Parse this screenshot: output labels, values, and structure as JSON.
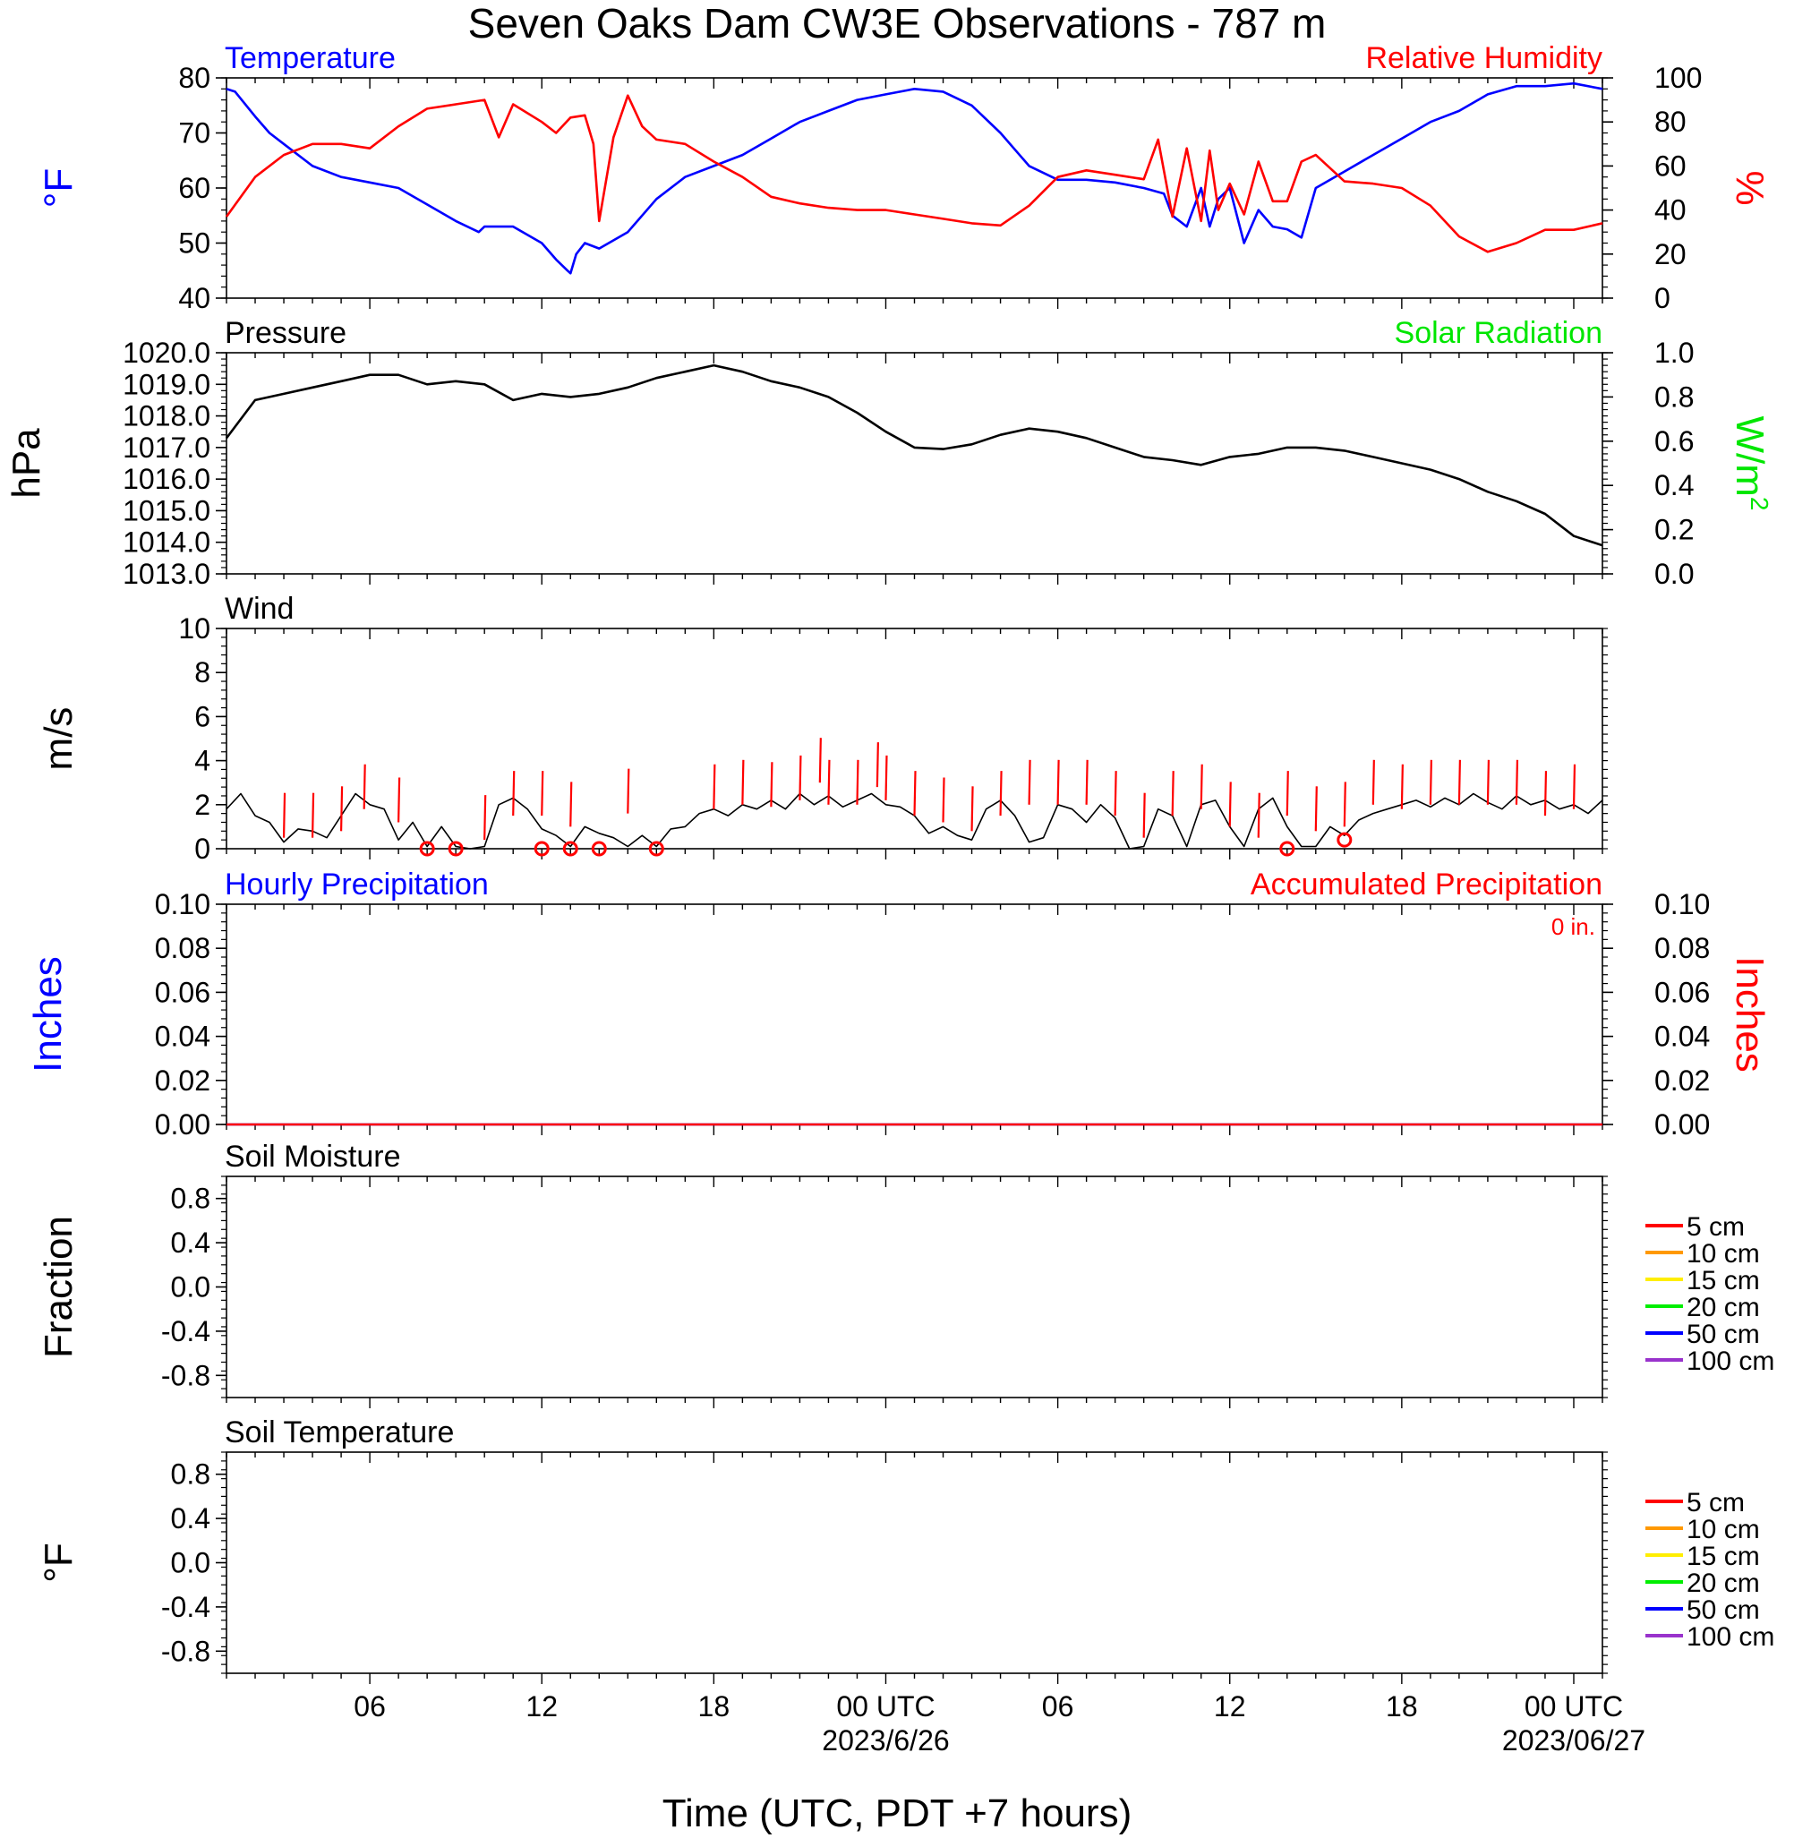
{
  "title": "Seven Oaks Dam CW3E Observations - 787 m",
  "xlabel": "Time (UTC, PDT +7 hours)",
  "x_axis": {
    "range_hours": [
      0,
      48
    ],
    "tick_hours": [
      5,
      11,
      17,
      23,
      29,
      35,
      41,
      47
    ],
    "tick_labels": [
      "06",
      "12",
      "18",
      "00 UTC",
      "06",
      "12",
      "18",
      "00 UTC"
    ],
    "date_labels": [
      {
        "hour": 23,
        "text": "2023/6/26"
      },
      {
        "hour": 47,
        "text": "2023/06/27"
      }
    ]
  },
  "colors": {
    "temperature": "#0000ff",
    "humidity": "#ff0000",
    "pressure": "#000000",
    "solar": "#00e600",
    "wind": "#000000",
    "wind_barb": "#ff0000",
    "hourly_precip": "#0000ff",
    "accum_precip": "#ff0000",
    "soil_depths": [
      "#ff0000",
      "#ff9900",
      "#ffee00",
      "#00ee00",
      "#0000ff",
      "#9933cc"
    ]
  },
  "chart_data": [
    {
      "type": "line",
      "panel": "temperature-humidity",
      "title_left": "Temperature",
      "title_right": "Relative Humidity",
      "ylabel_left": "°F",
      "ylabel_right": "%",
      "ylim_left": [
        40,
        80
      ],
      "ylim_right": [
        0,
        100
      ],
      "yticks_left": [
        "80",
        "70",
        "60",
        "50",
        "40"
      ],
      "yticks_right": [
        "100",
        "80",
        "60",
        "40",
        "20",
        "0"
      ],
      "series": [
        {
          "name": "Temperature",
          "axis": "left",
          "x": [
            0,
            0.3,
            1,
            1.5,
            2,
            3,
            4,
            5,
            6,
            7,
            8,
            8.8,
            9,
            10,
            11,
            11.5,
            11.9,
            12,
            12.2,
            12.5,
            13,
            14,
            15,
            16,
            17,
            18,
            19,
            20,
            21,
            22,
            23,
            24,
            25,
            26,
            27,
            28,
            29,
            30,
            31,
            32,
            32.7,
            33,
            33.5,
            34,
            34.3,
            34.6,
            35,
            35.5,
            36,
            36.5,
            37,
            37.5,
            38,
            39,
            40,
            41,
            42,
            43,
            44,
            45,
            46,
            47,
            48
          ],
          "y": [
            78,
            77.5,
            73,
            70,
            68,
            64,
            62,
            61,
            60,
            57,
            54,
            52,
            53,
            53,
            50,
            47,
            45,
            44.5,
            48,
            50,
            49,
            52,
            58,
            62,
            64,
            66,
            69,
            72,
            74,
            76,
            77,
            78,
            77.5,
            75,
            70,
            64,
            61.5,
            61.5,
            61,
            60,
            59,
            55,
            53,
            60,
            53,
            58,
            60,
            50,
            56,
            53,
            52.5,
            51,
            60,
            63,
            66,
            69,
            72,
            74,
            77,
            78.5,
            78.5,
            79,
            78
          ]
        },
        {
          "name": "Relative Humidity",
          "axis": "right",
          "x": [
            0,
            1,
            2,
            3,
            4,
            5,
            6,
            7,
            8,
            9,
            9.5,
            10,
            11,
            11.5,
            12,
            12.5,
            12.8,
            13,
            13.5,
            14,
            14.5,
            15,
            16,
            17,
            18,
            19,
            20,
            21,
            22,
            23,
            24,
            25,
            26,
            27,
            28,
            29,
            30,
            31,
            32,
            32.5,
            33,
            33.5,
            34,
            34.3,
            34.6,
            35,
            35.5,
            36,
            36.5,
            37,
            37.5,
            38,
            39,
            40,
            41,
            42,
            43,
            44,
            45,
            46,
            47,
            48
          ],
          "y": [
            37,
            55,
            65,
            70,
            70,
            68,
            78,
            86,
            88,
            90,
            73,
            88,
            80,
            75,
            82,
            83,
            70,
            35,
            73,
            92,
            78,
            72,
            70,
            62,
            55,
            46,
            43,
            41,
            40,
            40,
            38,
            36,
            34,
            33,
            42,
            55,
            58,
            56,
            54,
            72,
            37,
            68,
            35,
            67,
            40,
            52,
            38,
            62,
            44,
            44,
            62,
            65,
            53,
            52,
            50,
            42,
            28,
            21,
            25,
            31,
            31,
            34
          ]
        }
      ]
    },
    {
      "type": "line",
      "panel": "pressure-solar",
      "title_left": "Pressure",
      "title_right": "Solar Radiation",
      "ylabel_left": "hPa",
      "ylabel_right": "W/m",
      "ylabel_right_sup": "2",
      "ylim_left": [
        1013.0,
        1020.0
      ],
      "ylim_right": [
        0.0,
        1.0
      ],
      "yticks_left": [
        "1020.0",
        "1019.0",
        "1018.0",
        "1017.0",
        "1016.0",
        "1015.0",
        "1014.0",
        "1013.0"
      ],
      "yticks_right": [
        "1.0",
        "0.8",
        "0.6",
        "0.4",
        "0.2",
        "0.0"
      ],
      "series": [
        {
          "name": "Pressure",
          "axis": "left",
          "x": [
            0,
            1,
            2,
            3,
            4,
            5,
            6,
            7,
            8,
            9,
            10,
            11,
            12,
            13,
            14,
            15,
            16,
            17,
            18,
            19,
            20,
            21,
            22,
            23,
            24,
            25,
            26,
            27,
            28,
            29,
            30,
            31,
            32,
            33,
            34,
            35,
            36,
            37,
            38,
            39,
            40,
            41,
            42,
            43,
            44,
            45,
            46,
            47,
            48
          ],
          "y": [
            1017.3,
            1018.5,
            1018.7,
            1018.9,
            1019.1,
            1019.3,
            1019.3,
            1019.0,
            1019.1,
            1019.0,
            1018.5,
            1018.7,
            1018.6,
            1018.7,
            1018.9,
            1019.2,
            1019.4,
            1019.6,
            1019.4,
            1019.1,
            1018.9,
            1018.6,
            1018.1,
            1017.5,
            1017.0,
            1016.95,
            1017.1,
            1017.4,
            1017.6,
            1017.5,
            1017.3,
            1017.0,
            1016.7,
            1016.6,
            1016.45,
            1016.7,
            1016.8,
            1017.0,
            1017.0,
            1016.9,
            1016.7,
            1016.5,
            1016.3,
            1016.0,
            1015.6,
            1015.3,
            1014.9,
            1014.2,
            1013.9
          ]
        }
      ]
    },
    {
      "type": "line",
      "panel": "wind",
      "title_left": "Wind",
      "ylabel_left": "m/s",
      "ylim_left": [
        0,
        10
      ],
      "yticks_left": [
        "10",
        "8",
        "6",
        "4",
        "2",
        "0"
      ],
      "series": [
        {
          "name": "Wind speed",
          "axis": "left",
          "x": [
            0,
            0.5,
            1,
            1.5,
            2,
            2.5,
            3,
            3.5,
            4,
            4.5,
            5,
            5.5,
            6,
            6.5,
            7,
            7.5,
            8,
            8.5,
            9,
            9.5,
            10,
            10.5,
            11,
            11.5,
            12,
            12.5,
            13,
            13.5,
            14,
            14.5,
            15,
            15.5,
            16,
            16.5,
            17,
            17.5,
            18,
            18.5,
            19,
            19.5,
            20,
            20.5,
            21,
            21.5,
            22,
            22.5,
            23,
            23.5,
            24,
            24.5,
            25,
            25.5,
            26,
            26.5,
            27,
            27.5,
            28,
            28.5,
            29,
            29.5,
            30,
            30.5,
            31,
            31.5,
            32,
            32.5,
            33,
            33.5,
            34,
            34.5,
            35,
            35.5,
            36,
            36.5,
            37,
            37.5,
            38,
            38.5,
            39,
            39.5,
            40,
            40.5,
            41,
            41.5,
            42,
            42.5,
            43,
            43.5,
            44,
            44.5,
            45,
            45.5,
            46,
            46.5,
            47,
            47.5,
            48
          ],
          "y": [
            1.8,
            2.5,
            1.5,
            1.2,
            0.3,
            0.9,
            0.8,
            0.5,
            1.5,
            2.5,
            2.0,
            1.8,
            0.4,
            1.2,
            0.1,
            1.0,
            0.1,
            0.0,
            0.1,
            2.0,
            2.3,
            1.8,
            0.9,
            0.6,
            0.1,
            1.0,
            0.7,
            0.5,
            0.1,
            0.6,
            0.1,
            0.9,
            1.0,
            1.6,
            1.8,
            1.5,
            2.0,
            1.8,
            2.2,
            1.8,
            2.5,
            2.0,
            2.4,
            1.9,
            2.2,
            2.5,
            2.0,
            1.9,
            1.5,
            0.7,
            1.0,
            0.6,
            0.4,
            1.8,
            2.2,
            1.5,
            0.3,
            0.5,
            2.0,
            1.8,
            1.2,
            2.0,
            1.4,
            0.0,
            0.1,
            1.8,
            1.5,
            0.1,
            2.0,
            2.2,
            1.0,
            0.1,
            1.8,
            2.3,
            1.0,
            0.1,
            0.1,
            1.0,
            0.6,
            1.3,
            1.6,
            1.8,
            2.0,
            2.2,
            1.9,
            2.3,
            2.0,
            2.5,
            2.1,
            1.8,
            2.4,
            2.0,
            2.2,
            1.8,
            2.0,
            1.6,
            2.2
          ]
        },
        {
          "name": "Wind barb",
          "axis": "left",
          "style": "barb",
          "x": [
            2,
            3,
            4,
            4.8,
            6,
            9,
            10,
            11,
            12,
            14,
            17,
            18,
            19,
            20,
            20.7,
            21,
            22,
            22.7,
            23,
            24,
            25,
            26,
            27,
            28,
            29,
            30,
            31,
            32,
            33,
            34,
            35,
            36,
            37,
            38,
            39,
            40,
            41,
            42,
            43,
            44,
            45,
            46,
            47
          ],
          "y": [
            0.5,
            0.5,
            0.8,
            1.8,
            1.2,
            0.4,
            1.5,
            1.5,
            1.0,
            1.6,
            1.8,
            2.0,
            1.9,
            2.2,
            3.0,
            2.0,
            2.0,
            2.8,
            2.2,
            1.5,
            1.2,
            0.8,
            1.5,
            2.0,
            2.0,
            2.0,
            1.5,
            0.5,
            1.5,
            1.8,
            1.0,
            0.5,
            1.5,
            0.8,
            1.0,
            2.0,
            1.8,
            2.0,
            2.0,
            2.0,
            2.0,
            1.5,
            1.8
          ]
        },
        {
          "name": "Calm",
          "axis": "left",
          "style": "circle",
          "x": [
            7,
            8,
            11,
            12,
            13,
            15,
            37,
            39
          ],
          "y": [
            0,
            0,
            0,
            0,
            0,
            0,
            0,
            0.4
          ]
        }
      ]
    },
    {
      "type": "line",
      "panel": "precipitation",
      "title_left": "Hourly Precipitation",
      "title_right": "Accumulated Precipitation",
      "annotation": "0 in.",
      "ylabel_left": "Inches",
      "ylabel_right": "Inches",
      "ylim_left": [
        0.0,
        0.1
      ],
      "ylim_right": [
        0.0,
        0.1
      ],
      "yticks_left": [
        "0.10",
        "0.08",
        "0.06",
        "0.04",
        "0.02",
        "0.00"
      ],
      "yticks_right": [
        "0.10",
        "0.08",
        "0.06",
        "0.04",
        "0.02",
        "0.00"
      ],
      "series": [
        {
          "name": "Hourly Precipitation",
          "axis": "left",
          "x": [
            0,
            48
          ],
          "y": [
            0,
            0
          ]
        },
        {
          "name": "Accumulated Precipitation",
          "axis": "right",
          "x": [
            0,
            48
          ],
          "y": [
            0,
            0
          ]
        }
      ]
    },
    {
      "type": "line",
      "panel": "soil-moisture",
      "title_left": "Soil Moisture",
      "ylabel_left": "Fraction",
      "ylim_left": [
        -1.0,
        1.0
      ],
      "yticks_left": [
        "0.8",
        "0.4",
        "0.0",
        "-0.4",
        "-0.8"
      ],
      "legend": [
        "5 cm",
        "10 cm",
        "15 cm",
        "20 cm",
        "50 cm",
        "100 cm"
      ],
      "series": []
    },
    {
      "type": "line",
      "panel": "soil-temperature",
      "title_left": "Soil Temperature",
      "ylabel_left": "°F",
      "ylim_left": [
        -1.0,
        1.0
      ],
      "yticks_left": [
        "0.8",
        "0.4",
        "0.0",
        "-0.4",
        "-0.8"
      ],
      "legend": [
        "5 cm",
        "10 cm",
        "15 cm",
        "20 cm",
        "50 cm",
        "100 cm"
      ],
      "series": []
    }
  ]
}
